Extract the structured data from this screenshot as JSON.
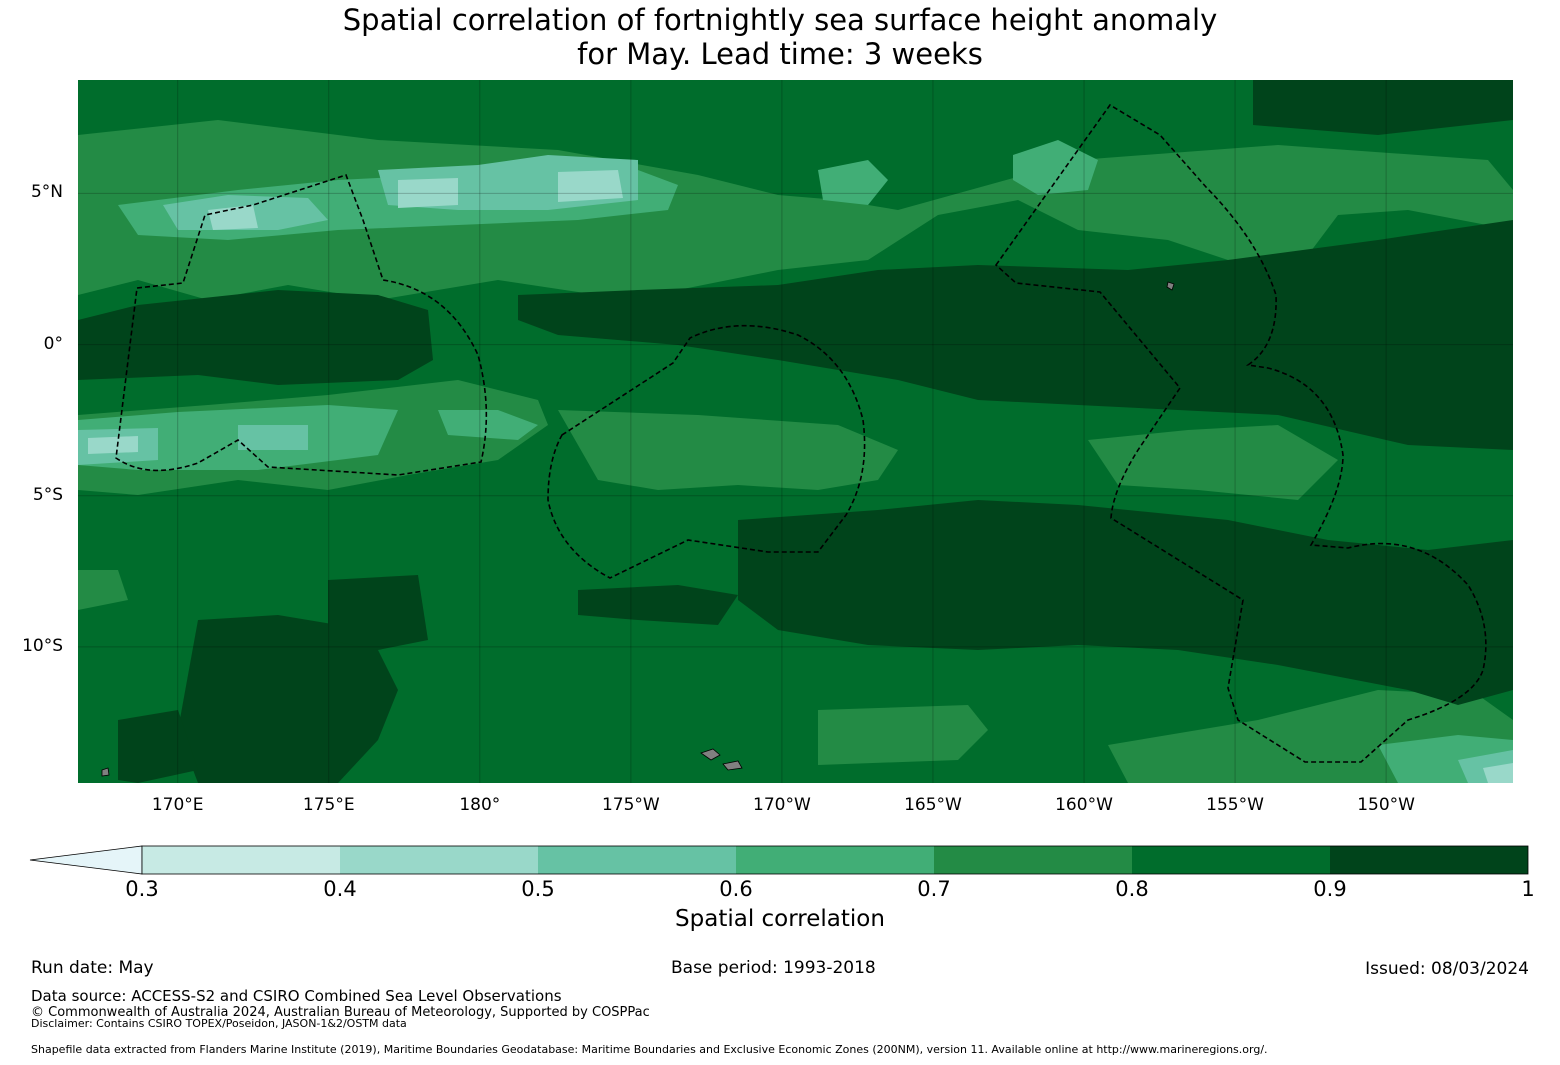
{
  "title": {
    "line1": "Spatial correlation of fortnightly sea surface height anomaly",
    "line2": "for May. Lead time: 3 weeks"
  },
  "map": {
    "lat_range": [
      -14.5,
      8.75
    ],
    "lon_range": [
      166.7,
      214.2
    ],
    "latitude_labels": [
      {
        "label": "5°N",
        "lat": 5
      },
      {
        "label": "0°",
        "lat": 0
      },
      {
        "label": "5°S",
        "lat": -5
      },
      {
        "label": "10°S",
        "lat": -10
      }
    ],
    "longitude_labels": [
      {
        "label": "170°E",
        "lon": 170
      },
      {
        "label": "175°E",
        "lon": 175
      },
      {
        "label": "180°",
        "lon": 180
      },
      {
        "label": "175°W",
        "lon": 185
      },
      {
        "label": "170°W",
        "lon": 190
      },
      {
        "label": "165°W",
        "lon": 195
      },
      {
        "label": "160°W",
        "lon": 200
      },
      {
        "label": "155°W",
        "lon": 205
      },
      {
        "label": "150°W",
        "lon": 210
      }
    ],
    "gridlines": true,
    "land_color": "#808080",
    "eez_boundary_style": "dashed black"
  },
  "colorbar": {
    "label": "Spatial correlation",
    "extend": "min",
    "bounds": [
      0.3,
      0.4,
      0.5,
      0.6,
      0.7,
      0.8,
      0.9,
      1
    ],
    "tick_labels": [
      "0.3",
      "0.4",
      "0.5",
      "0.6",
      "0.7",
      "0.8",
      "0.9",
      "1"
    ],
    "under_color": "#e5f5f9",
    "colors": [
      "#c7eae4",
      "#99d8c9",
      "#66c2a4",
      "#41ae76",
      "#238b45",
      "#006d2c",
      "#00441b"
    ]
  },
  "footer": {
    "run_date": "Run date: May",
    "base_period": "Base period: 1993-2018",
    "issued": "Issued: 08/03/2024",
    "data_source": "Data source: ACCESS-S2 and CSIRO Combined Sea Level Observations",
    "copyright": "© Commonwealth of Australia 2024, Australian Bureau of Meteorology, Supported by COSPPac",
    "disclaimer": "Disclaimer: Contains CSIRO TOPEX/Poseidon, JASON-1&2/OSTM data",
    "shapefile": "Shapefile data extracted from Flanders Marine Institute (2019), Maritime Boundaries Geodatabase: Maritime Boundaries and Exclusive Economic Zones (200NM), version 11. Available online at http://www.marineregions.org/."
  }
}
